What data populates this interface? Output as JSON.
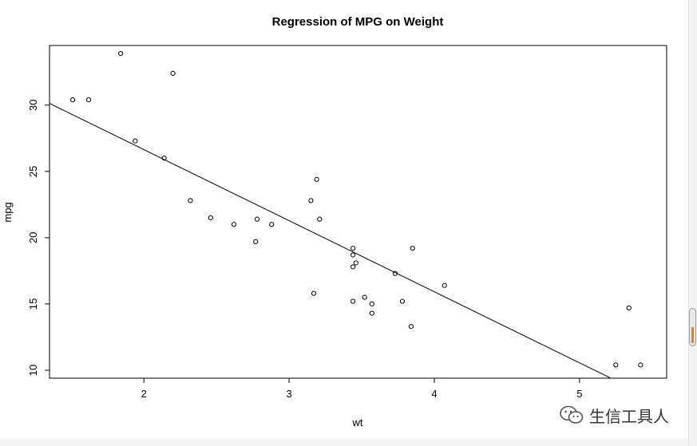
{
  "chart_data": {
    "type": "scatter",
    "title": "Regression of MPG on Weight",
    "xlabel": "wt",
    "ylabel": "mpg",
    "xlim": [
      1.35,
      5.6
    ],
    "ylim": [
      9.4,
      34.5
    ],
    "xticks": [
      2,
      3,
      4,
      5
    ],
    "yticks": [
      10,
      15,
      20,
      25,
      30
    ],
    "grid": false,
    "points": [
      {
        "x": 1.51,
        "y": 30.4
      },
      {
        "x": 1.62,
        "y": 30.4
      },
      {
        "x": 1.84,
        "y": 33.9
      },
      {
        "x": 1.94,
        "y": 27.3
      },
      {
        "x": 2.14,
        "y": 26.0
      },
      {
        "x": 2.2,
        "y": 32.4
      },
      {
        "x": 2.32,
        "y": 22.8
      },
      {
        "x": 2.46,
        "y": 21.5
      },
      {
        "x": 2.62,
        "y": 21.0
      },
      {
        "x": 2.77,
        "y": 19.7
      },
      {
        "x": 2.78,
        "y": 21.4
      },
      {
        "x": 2.88,
        "y": 21.0
      },
      {
        "x": 3.15,
        "y": 22.8
      },
      {
        "x": 3.17,
        "y": 15.8
      },
      {
        "x": 3.19,
        "y": 24.4
      },
      {
        "x": 3.21,
        "y": 21.4
      },
      {
        "x": 3.44,
        "y": 15.2
      },
      {
        "x": 3.44,
        "y": 17.8
      },
      {
        "x": 3.44,
        "y": 18.7
      },
      {
        "x": 3.44,
        "y": 19.2
      },
      {
        "x": 3.46,
        "y": 18.1
      },
      {
        "x": 3.52,
        "y": 15.5
      },
      {
        "x": 3.57,
        "y": 15.0
      },
      {
        "x": 3.57,
        "y": 14.3
      },
      {
        "x": 3.73,
        "y": 17.3
      },
      {
        "x": 3.78,
        "y": 15.2
      },
      {
        "x": 3.84,
        "y": 13.3
      },
      {
        "x": 3.85,
        "y": 19.2
      },
      {
        "x": 4.07,
        "y": 16.4
      },
      {
        "x": 5.25,
        "y": 10.4
      },
      {
        "x": 5.34,
        "y": 14.7
      },
      {
        "x": 5.42,
        "y": 10.4
      }
    ],
    "regression_line": {
      "x1": 1.35,
      "y1": 30.13,
      "x2": 5.21,
      "y2": 9.43
    }
  },
  "watermark": {
    "text": "生信工具人",
    "icon": "wechat-icon"
  },
  "colors": {
    "ink": "#000000",
    "scroll_grip": "#d9822b"
  }
}
